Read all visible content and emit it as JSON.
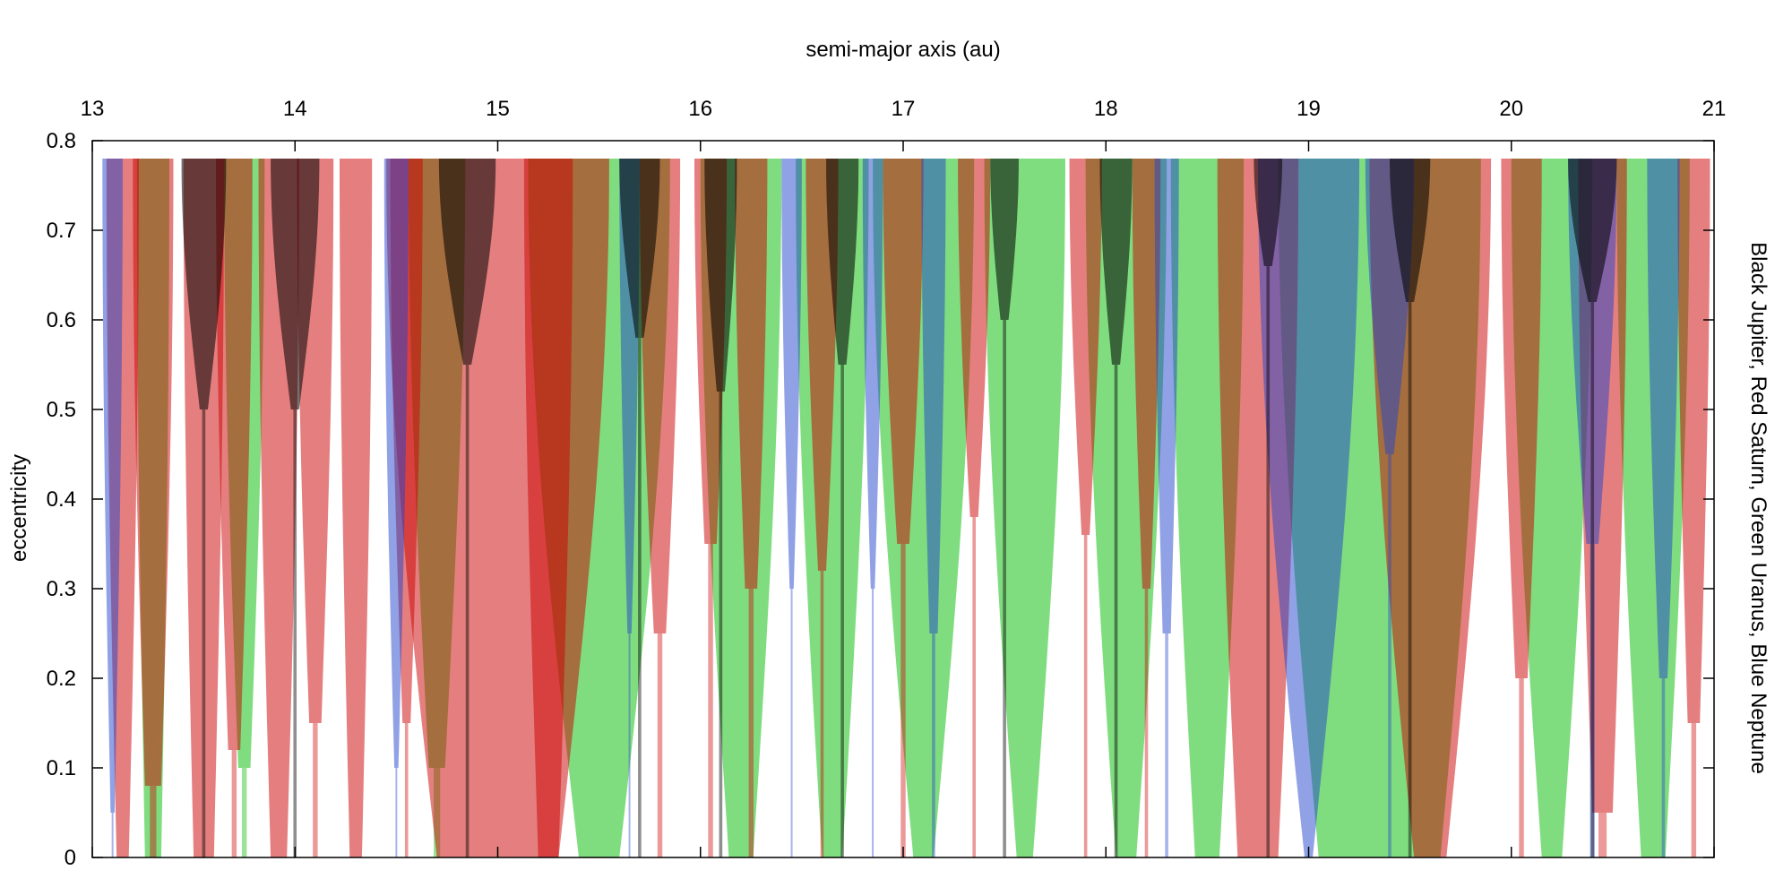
{
  "chart_data": {
    "type": "area",
    "title": "",
    "xlabel": "semi-major axis (au)",
    "ylabel": "eccentricity",
    "right_label": "Black Jupiter, Red Saturn, Green Uranus, Blue Neptune",
    "xlim": [
      13,
      21
    ],
    "ylim": [
      0,
      0.8
    ],
    "x_ticks": [
      "13",
      "14",
      "15",
      "16",
      "17",
      "18",
      "19",
      "20",
      "21"
    ],
    "y_ticks": [
      "0",
      "0.1",
      "0.2",
      "0.3",
      "0.4",
      "0.5",
      "0.6",
      "0.7",
      "0.8"
    ],
    "grid": false,
    "series": [
      {
        "name": "Jupiter",
        "color": "#000000",
        "opacity": 0.55,
        "resonances": [
          {
            "a": 13.55,
            "w0": 0.02,
            "w1": 0.11,
            "e0": 0.5
          },
          {
            "a": 14.0,
            "w0": 0.02,
            "w1": 0.12,
            "e0": 0.5
          },
          {
            "a": 14.85,
            "w0": 0.02,
            "w1": 0.14,
            "e0": 0.55
          },
          {
            "a": 15.7,
            "w0": 0.02,
            "w1": 0.1,
            "e0": 0.58
          },
          {
            "a": 16.1,
            "w0": 0.02,
            "w1": 0.08,
            "e0": 0.52
          },
          {
            "a": 16.7,
            "w0": 0.02,
            "w1": 0.08,
            "e0": 0.55
          },
          {
            "a": 17.5,
            "w0": 0.02,
            "w1": 0.07,
            "e0": 0.6
          },
          {
            "a": 18.05,
            "w0": 0.02,
            "w1": 0.08,
            "e0": 0.55
          },
          {
            "a": 18.8,
            "w0": 0.02,
            "w1": 0.07,
            "e0": 0.66
          },
          {
            "a": 19.5,
            "w0": 0.02,
            "w1": 0.1,
            "e0": 0.62
          },
          {
            "a": 20.4,
            "w0": 0.02,
            "w1": 0.12,
            "e0": 0.62
          }
        ]
      },
      {
        "name": "Saturn",
        "color": "#cc0000",
        "opacity": 0.5,
        "resonances": [
          {
            "a": 13.15,
            "w0": 0.03,
            "w1": 0.08,
            "e0": 0.0
          },
          {
            "a": 13.3,
            "w0": 0.04,
            "w1": 0.1,
            "e0": 0.08
          },
          {
            "a": 13.55,
            "w0": 0.05,
            "w1": 0.1,
            "e0": 0.0
          },
          {
            "a": 13.7,
            "w0": 0.03,
            "w1": 0.09,
            "e0": 0.12
          },
          {
            "a": 13.92,
            "w0": 0.04,
            "w1": 0.1,
            "e0": 0.0
          },
          {
            "a": 14.1,
            "w0": 0.03,
            "w1": 0.09,
            "e0": 0.15
          },
          {
            "a": 14.3,
            "w0": 0.03,
            "w1": 0.08,
            "e0": 0.0
          },
          {
            "a": 14.55,
            "w0": 0.02,
            "w1": 0.08,
            "e0": 0.15
          },
          {
            "a": 15.0,
            "w0": 0.3,
            "w1": 0.55,
            "e0": 0.0
          },
          {
            "a": 15.25,
            "w0": 0.05,
            "w1": 0.12,
            "e0": 0.0
          },
          {
            "a": 15.8,
            "w0": 0.03,
            "w1": 0.1,
            "e0": 0.25
          },
          {
            "a": 16.05,
            "w0": 0.03,
            "w1": 0.08,
            "e0": 0.35
          },
          {
            "a": 16.25,
            "w0": 0.03,
            "w1": 0.08,
            "e0": 0.3
          },
          {
            "a": 16.6,
            "w0": 0.02,
            "w1": 0.08,
            "e0": 0.32
          },
          {
            "a": 17.0,
            "w0": 0.03,
            "w1": 0.1,
            "e0": 0.35
          },
          {
            "a": 17.35,
            "w0": 0.02,
            "w1": 0.08,
            "e0": 0.38
          },
          {
            "a": 17.9,
            "w0": 0.02,
            "w1": 0.08,
            "e0": 0.36
          },
          {
            "a": 18.2,
            "w0": 0.02,
            "w1": 0.07,
            "e0": 0.3
          },
          {
            "a": 18.75,
            "w0": 0.1,
            "w1": 0.2,
            "e0": 0.0
          },
          {
            "a": 19.6,
            "w0": 0.08,
            "w1": 0.3,
            "e0": 0.0
          },
          {
            "a": 20.05,
            "w0": 0.03,
            "w1": 0.1,
            "e0": 0.2
          },
          {
            "a": 20.45,
            "w0": 0.05,
            "w1": 0.12,
            "e0": 0.05
          },
          {
            "a": 20.9,
            "w0": 0.03,
            "w1": 0.08,
            "e0": 0.15
          }
        ]
      },
      {
        "name": "Uranus",
        "color": "#00bb00",
        "opacity": 0.5,
        "resonances": [
          {
            "a": 13.3,
            "w0": 0.04,
            "w1": 0.08,
            "e0": 0.0
          },
          {
            "a": 13.75,
            "w0": 0.03,
            "w1": 0.1,
            "e0": 0.1
          },
          {
            "a": 14.7,
            "w0": 0.04,
            "w1": 0.14,
            "e0": 0.1
          },
          {
            "a": 15.5,
            "w0": 0.1,
            "w1": 0.35,
            "e0": 0.0
          },
          {
            "a": 16.2,
            "w0": 0.06,
            "w1": 0.2,
            "e0": 0.0
          },
          {
            "a": 16.65,
            "w0": 0.05,
            "w1": 0.18,
            "e0": 0.0
          },
          {
            "a": 17.1,
            "w0": 0.05,
            "w1": 0.25,
            "e0": 0.0
          },
          {
            "a": 17.6,
            "w0": 0.04,
            "w1": 0.2,
            "e0": 0.0
          },
          {
            "a": 18.1,
            "w0": 0.05,
            "w1": 0.2,
            "e0": 0.0
          },
          {
            "a": 18.5,
            "w0": 0.06,
            "w1": 0.18,
            "e0": 0.0
          },
          {
            "a": 19.35,
            "w0": 0.3,
            "w1": 0.5,
            "e0": 0.0
          },
          {
            "a": 20.2,
            "w0": 0.05,
            "w1": 0.2,
            "e0": 0.0
          },
          {
            "a": 20.7,
            "w0": 0.06,
            "w1": 0.18,
            "e0": 0.0
          }
        ]
      },
      {
        "name": "Neptune",
        "color": "#2244cc",
        "opacity": 0.5,
        "resonances": [
          {
            "a": 13.1,
            "w0": 0.01,
            "w1": 0.05,
            "e0": 0.05
          },
          {
            "a": 14.5,
            "w0": 0.01,
            "w1": 0.06,
            "e0": 0.1
          },
          {
            "a": 15.65,
            "w0": 0.01,
            "w1": 0.05,
            "e0": 0.25
          },
          {
            "a": 16.45,
            "w0": 0.01,
            "w1": 0.05,
            "e0": 0.3
          },
          {
            "a": 16.85,
            "w0": 0.01,
            "w1": 0.05,
            "e0": 0.3
          },
          {
            "a": 17.15,
            "w0": 0.02,
            "w1": 0.06,
            "e0": 0.25
          },
          {
            "a": 18.3,
            "w0": 0.02,
            "w1": 0.06,
            "e0": 0.25
          },
          {
            "a": 19.0,
            "w0": 0.02,
            "w1": 0.25,
            "e0": 0.0
          },
          {
            "a": 19.4,
            "w0": 0.02,
            "w1": 0.12,
            "e0": 0.45
          },
          {
            "a": 20.4,
            "w0": 0.03,
            "w1": 0.12,
            "e0": 0.35
          },
          {
            "a": 20.75,
            "w0": 0.02,
            "w1": 0.08,
            "e0": 0.2
          }
        ]
      }
    ]
  }
}
